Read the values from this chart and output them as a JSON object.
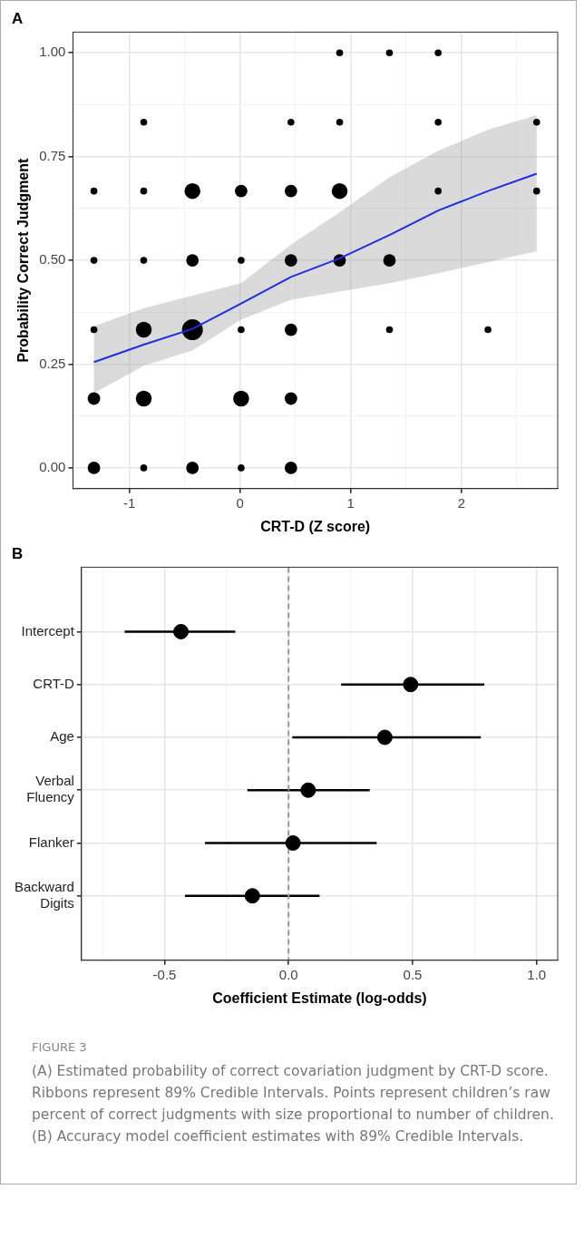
{
  "chart_data": [
    {
      "type": "bubble",
      "title": "A",
      "xlabel": "CRT-D (Z score)",
      "ylabel": "Probability Correct Judgment",
      "xlim": [
        -1.51,
        2.87
      ],
      "ylim": [
        -0.05,
        1.05
      ],
      "xticks": [
        {
          "value": -1.5,
          "label": null
        },
        -1,
        {
          "value": -0.5,
          "label": null
        },
        0,
        {
          "value": 0.5,
          "label": null
        },
        1,
        {
          "value": 1.5,
          "label": null
        },
        2,
        {
          "value": 2.5,
          "label": null
        }
      ],
      "yticks": [
        {
          "value": 0,
          "label": "0.00"
        },
        {
          "value": 0.125,
          "label": null
        },
        0.25,
        {
          "value": 0.375,
          "label": null
        },
        {
          "value": 0.5,
          "label": "0.50"
        },
        {
          "value": 0.625,
          "label": null
        },
        0.75,
        {
          "value": 0.875,
          "label": null
        },
        {
          "value": 1,
          "label": "1.00"
        }
      ],
      "grid": true,
      "series": [
        {
          "type": "bubble",
          "color": "#000000",
          "marker": "circle",
          "x": [
            0.9,
            1.35,
            1.79,
            -0.87,
            0.46,
            0.9,
            1.79,
            2.68,
            -1.32,
            -0.87,
            -0.43,
            0.01,
            0.46,
            0.9,
            1.79,
            2.68,
            -1.32,
            -0.87,
            -0.43,
            0.01,
            0.46,
            0.9,
            1.35,
            -1.32,
            -0.87,
            -0.43,
            0.01,
            0.46,
            1.35,
            2.24,
            -1.32,
            -0.87,
            0.01,
            0.46,
            -1.32,
            -0.87,
            -0.43,
            0.01,
            0.46
          ],
          "values": [
            1,
            1,
            1,
            0.833,
            0.833,
            0.833,
            0.833,
            0.833,
            0.667,
            0.667,
            0.667,
            0.667,
            0.667,
            0.667,
            0.667,
            0.667,
            0.5,
            0.5,
            0.5,
            0.5,
            0.5,
            0.5,
            0.5,
            0.333,
            0.333,
            0.333,
            0.333,
            0.333,
            0.333,
            0.333,
            0.167,
            0.167,
            0.167,
            0.167,
            0,
            0,
            0,
            0,
            0
          ],
          "sizes": [
            0.11,
            0.11,
            0.11,
            0.11,
            0.11,
            0.11,
            0.11,
            0.11,
            0.11,
            0.11,
            0.58,
            0.36,
            0.36,
            0.58,
            0.11,
            0.11,
            0.11,
            0.11,
            0.36,
            0.11,
            0.36,
            0.36,
            0.36,
            0.11,
            0.58,
            1,
            0.11,
            0.36,
            0.11,
            0.11,
            0.36,
            0.58,
            0.58,
            0.36,
            0.36,
            0.11,
            0.36,
            0.11,
            0.36
          ]
        },
        {
          "type": "line",
          "color": "#1f2ee0",
          "marker": "none",
          "x": [
            -1.32,
            -0.87,
            -0.43,
            0.01,
            0.46,
            0.9,
            1.35,
            1.79,
            2.24,
            2.68
          ],
          "values": [
            0.255,
            0.297,
            0.335,
            0.396,
            0.46,
            0.505,
            0.561,
            0.62,
            0.667,
            0.709
          ],
          "lower": [
            0.18,
            0.246,
            0.283,
            0.357,
            0.405,
            0.425,
            0.445,
            0.469,
            0.496,
            0.522
          ],
          "upper": [
            0.341,
            0.385,
            0.415,
            0.445,
            0.538,
            0.616,
            0.7,
            0.764,
            0.815,
            0.85
          ]
        }
      ]
    },
    {
      "type": "scatter",
      "title": "B",
      "orientation": "horizontal",
      "xlabel": "Coefficient Estimate (log-odds)",
      "xlim": [
        -0.835,
        1.085
      ],
      "xticks": [
        {
          "value": -0.75,
          "label": null
        },
        -0.5,
        {
          "value": -0.25,
          "label": null
        },
        {
          "value": 0,
          "label": "0.0"
        },
        {
          "value": 0.25,
          "label": null
        },
        0.5,
        {
          "value": 0.75,
          "label": null
        },
        {
          "value": 1,
          "label": "1.0"
        }
      ],
      "grid": true,
      "marker": "circle",
      "categories": [
        "Intercept",
        "CRT-D",
        "Age",
        "Verbal Fluency",
        "Flanker",
        "Backward Digits"
      ],
      "series": [
        {
          "color": "#000000",
          "values": [
            -0.434,
            0.492,
            0.388,
            0.079,
            0.018,
            -0.146
          ],
          "errors": [
            [
              -0.661,
              -0.215
            ],
            [
              0.212,
              0.789
            ],
            [
              0.015,
              0.775
            ],
            [
              -0.166,
              0.327
            ],
            [
              -0.337,
              0.355
            ],
            [
              -0.418,
              0.125
            ]
          ]
        }
      ],
      "ref_lines": [
        {
          "axis": "x",
          "value": 0,
          "color": "#999999",
          "line_style": "dashed"
        }
      ],
      "annotations": [
        "FIGURE 3",
        "(A) Estimated probability of correct covariation judgment by CRT-D score. Ribbons represent 89% Credible Intervals. Points represent children’s raw percent of correct judgments with size proportional to number of children. (B) Accuracy model coefficient estimates with 89% Credible Intervals."
      ]
    }
  ]
}
